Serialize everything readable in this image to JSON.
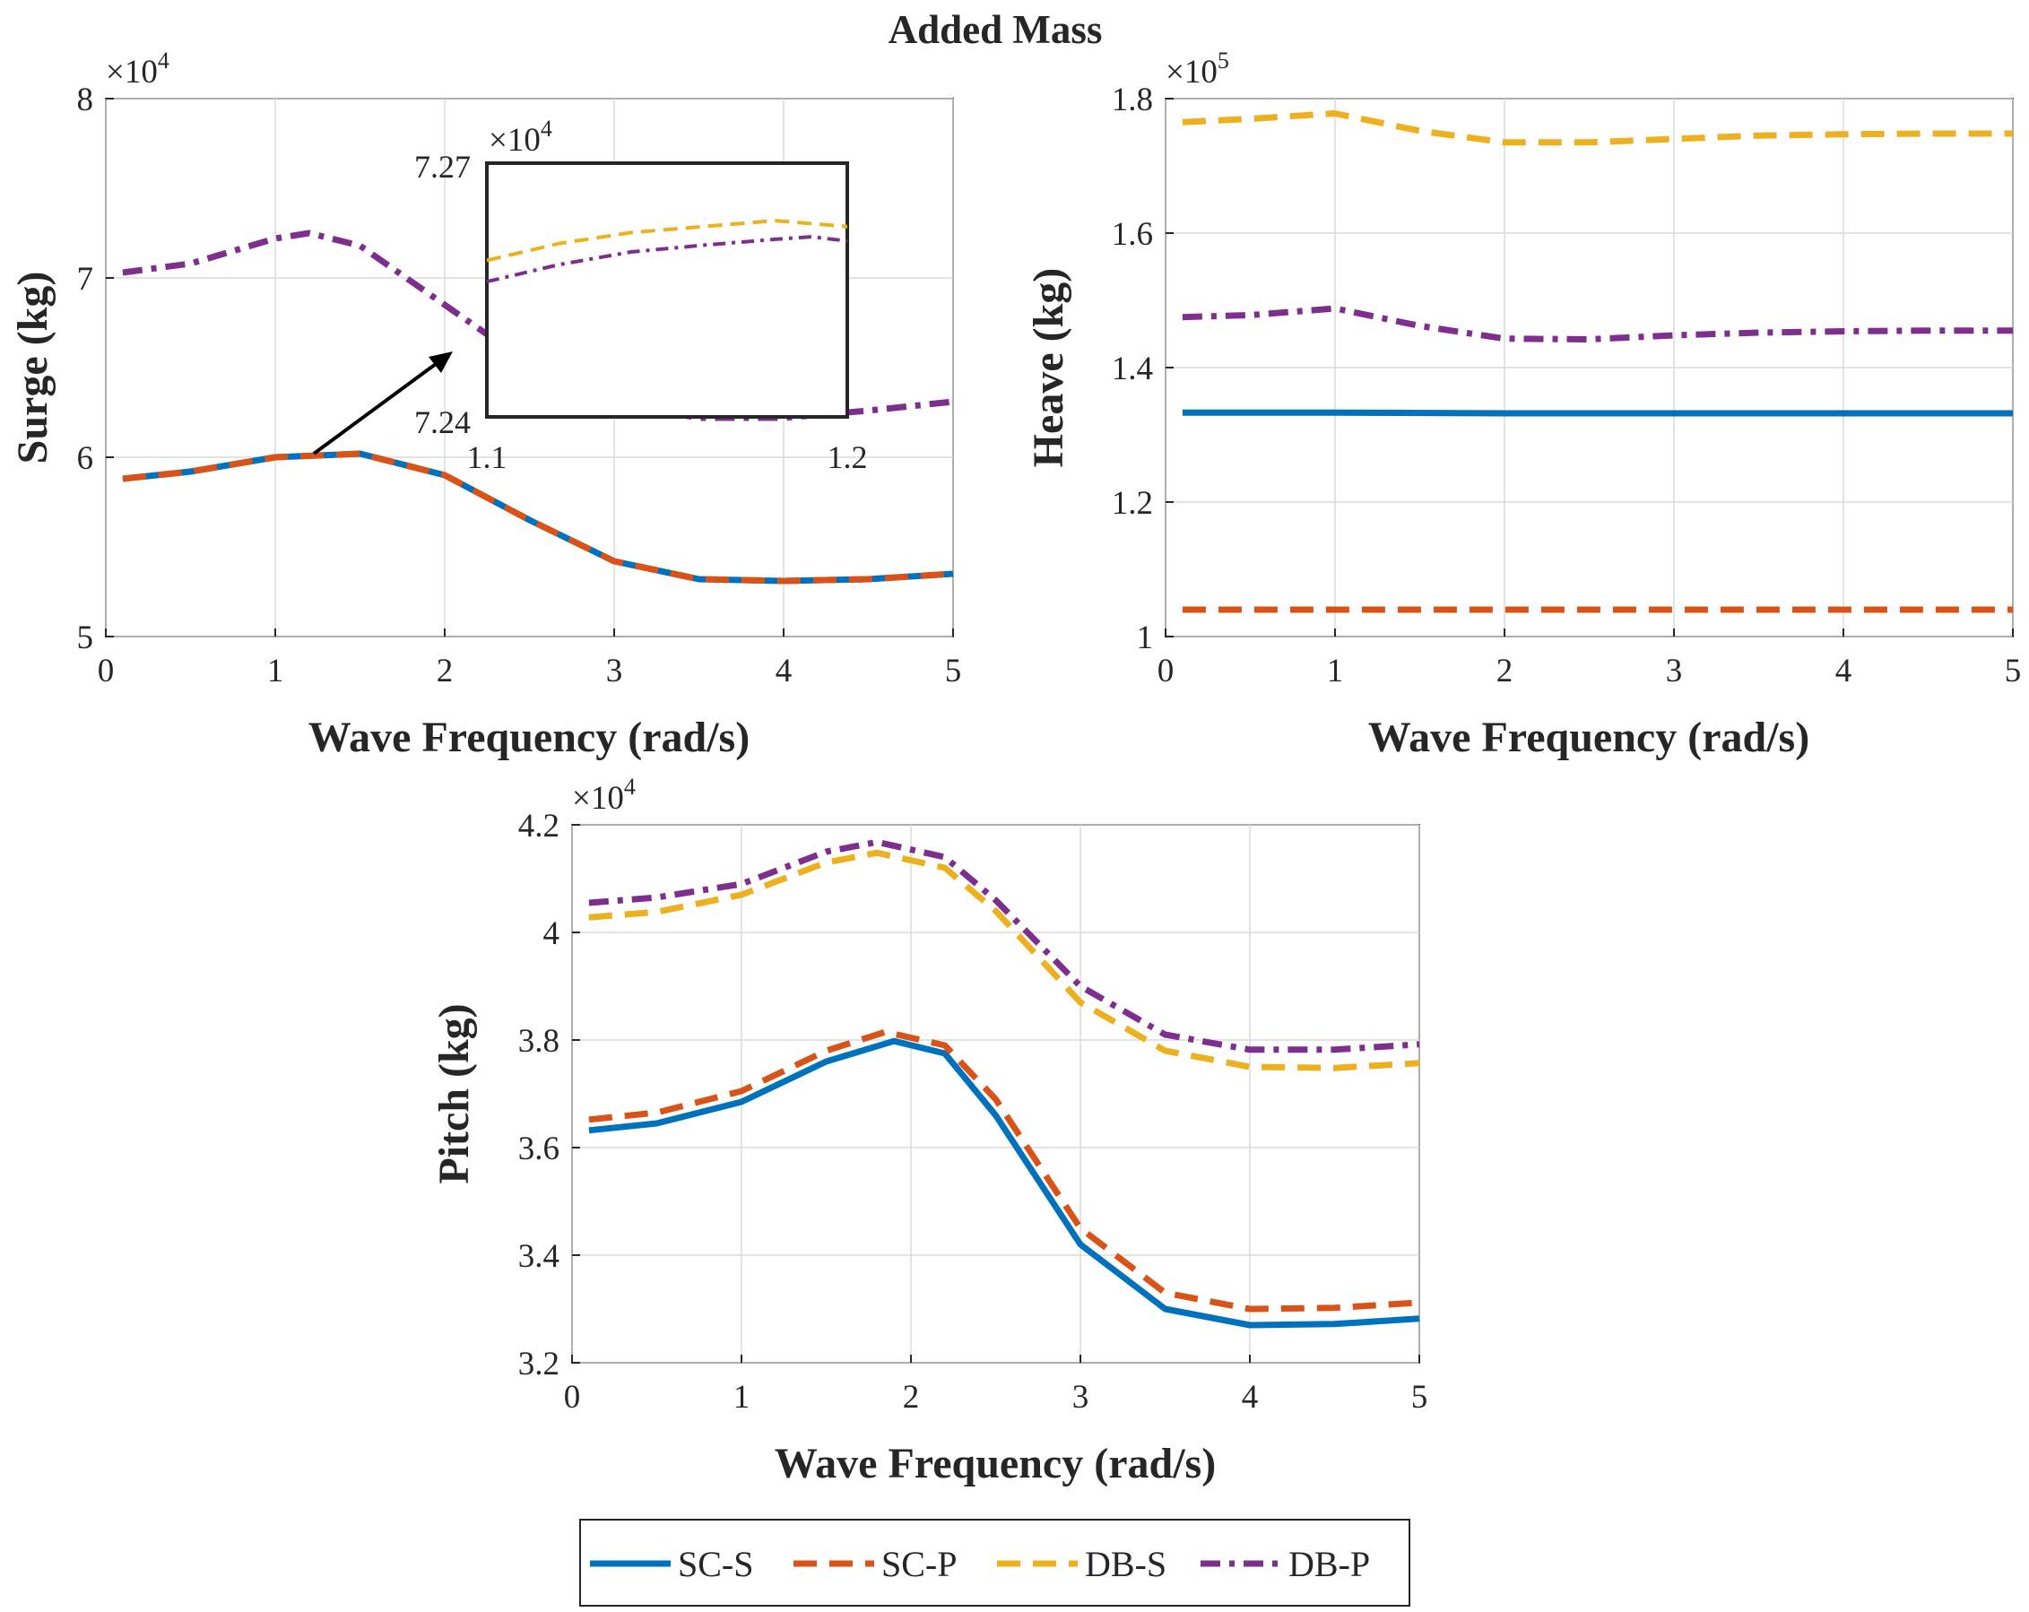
{
  "figure_title": "Added Mass",
  "chart_data": [
    {
      "id": "surge",
      "type": "line",
      "ylabel": "Surge (kg)",
      "xlabel": "Wave Frequency (rad/s)",
      "xlim": [
        0,
        5
      ],
      "ylim": [
        5,
        8
      ],
      "xticks": [
        0,
        1,
        2,
        3,
        4,
        5
      ],
      "yticks": [
        5,
        6,
        7,
        8
      ],
      "multiplier_base": "×10",
      "multiplier_exp": "4",
      "series": [
        {
          "name": "SC-S",
          "x": [
            0.1,
            0.5,
            1.0,
            1.5,
            2.0,
            2.5,
            3.0,
            3.5,
            4.0,
            4.5,
            5.0
          ],
          "values": [
            5.88,
            5.92,
            6.0,
            6.02,
            5.9,
            5.65,
            5.42,
            5.32,
            5.31,
            5.32,
            5.35
          ]
        },
        {
          "name": "SC-P",
          "x": [
            0.1,
            0.5,
            1.0,
            1.5,
            2.0,
            2.5,
            3.0,
            3.5,
            4.0,
            4.5,
            5.0
          ],
          "values": [
            5.88,
            5.92,
            6.0,
            6.02,
            5.9,
            5.65,
            5.42,
            5.32,
            5.31,
            5.32,
            5.35
          ]
        },
        {
          "name": "DB-P",
          "x": [
            0.1,
            0.5,
            1.0,
            1.2,
            1.5,
            2.0,
            2.5,
            3.0,
            3.5,
            4.0,
            4.5,
            5.0
          ],
          "values": [
            7.03,
            7.08,
            7.22,
            7.25,
            7.18,
            6.85,
            6.52,
            6.3,
            6.22,
            6.22,
            6.26,
            6.31
          ]
        }
      ],
      "inset": {
        "xlim": [
          1.1,
          1.2
        ],
        "ylim": [
          7.24,
          7.27
        ],
        "xticks": [
          1.1,
          1.2
        ],
        "yticks": [
          7.24,
          7.27
        ],
        "multiplier_base": "×10",
        "multiplier_exp": "4",
        "series": [
          {
            "name": "DB-S",
            "x": [
              1.1,
              1.12,
              1.14,
              1.16,
              1.18,
              1.2
            ],
            "values": [
              7.2585,
              7.2605,
              7.2618,
              7.2625,
              7.2632,
              7.2625
            ]
          },
          {
            "name": "DB-P",
            "x": [
              1.1,
              1.12,
              1.14,
              1.16,
              1.18,
              1.19,
              1.2
            ],
            "values": [
              7.256,
              7.258,
              7.2595,
              7.2603,
              7.261,
              7.2613,
              7.2608
            ]
          }
        ]
      }
    },
    {
      "id": "heave",
      "type": "line",
      "ylabel": "Heave (kg)",
      "xlabel": "Wave Frequency (rad/s)",
      "xlim": [
        0,
        5
      ],
      "ylim": [
        1,
        1.8
      ],
      "xticks": [
        0,
        1,
        2,
        3,
        4,
        5
      ],
      "yticks": [
        1,
        1.2,
        1.4,
        1.6,
        1.8
      ],
      "ytick_labels": [
        "1",
        "1.2",
        "1.4",
        "1.6",
        "1.8"
      ],
      "multiplier_base": "×10",
      "multiplier_exp": "5",
      "series": [
        {
          "name": "SC-S",
          "x": [
            0.1,
            1.0,
            2.0,
            3.0,
            4.0,
            5.0
          ],
          "values": [
            1.333,
            1.333,
            1.332,
            1.332,
            1.332,
            1.332
          ]
        },
        {
          "name": "SC-P",
          "x": [
            0.1,
            1.0,
            2.0,
            3.0,
            4.0,
            5.0
          ],
          "values": [
            1.04,
            1.04,
            1.04,
            1.04,
            1.04,
            1.04
          ]
        },
        {
          "name": "DB-S",
          "x": [
            0.1,
            0.5,
            1.0,
            1.5,
            2.0,
            2.5,
            3.0,
            3.5,
            4.0,
            4.5,
            5.0
          ],
          "values": [
            1.765,
            1.77,
            1.778,
            1.752,
            1.735,
            1.735,
            1.74,
            1.745,
            1.747,
            1.748,
            1.748
          ]
        },
        {
          "name": "DB-P",
          "x": [
            0.1,
            0.5,
            1.0,
            1.5,
            2.0,
            2.5,
            3.0,
            3.5,
            4.0,
            4.5,
            5.0
          ],
          "values": [
            1.475,
            1.478,
            1.488,
            1.462,
            1.443,
            1.442,
            1.448,
            1.452,
            1.454,
            1.455,
            1.455
          ]
        }
      ]
    },
    {
      "id": "pitch",
      "type": "line",
      "ylabel": "Pitch (kg)",
      "xlabel": "Wave Frequency (rad/s)",
      "xlim": [
        0,
        5
      ],
      "ylim": [
        3.2,
        4.2
      ],
      "xticks": [
        0,
        1,
        2,
        3,
        4,
        5
      ],
      "yticks": [
        3.2,
        3.4,
        3.6,
        3.8,
        4,
        4.2
      ],
      "ytick_labels": [
        "3.2",
        "3.4",
        "3.6",
        "3.8",
        "4",
        "4.2"
      ],
      "multiplier_base": "×10",
      "multiplier_exp": "4",
      "series": [
        {
          "name": "SC-S",
          "x": [
            0.1,
            0.5,
            1.0,
            1.5,
            1.9,
            2.2,
            2.5,
            3.0,
            3.5,
            4.0,
            4.5,
            5.0
          ],
          "values": [
            3.632,
            3.645,
            3.685,
            3.76,
            3.798,
            3.775,
            3.66,
            3.42,
            3.3,
            3.27,
            3.272,
            3.282
          ]
        },
        {
          "name": "SC-P",
          "x": [
            0.1,
            0.5,
            1.0,
            1.5,
            1.85,
            2.2,
            2.5,
            3.0,
            3.5,
            4.0,
            4.5,
            5.0
          ],
          "values": [
            3.652,
            3.665,
            3.705,
            3.78,
            3.815,
            3.79,
            3.69,
            3.45,
            3.33,
            3.3,
            3.302,
            3.312
          ]
        },
        {
          "name": "DB-S",
          "x": [
            0.1,
            0.5,
            1.0,
            1.5,
            1.8,
            2.2,
            2.5,
            3.0,
            3.5,
            4.0,
            4.5,
            5.0
          ],
          "values": [
            4.028,
            4.038,
            4.07,
            4.13,
            4.148,
            4.12,
            4.04,
            3.87,
            3.78,
            3.75,
            3.748,
            3.757
          ]
        },
        {
          "name": "DB-P",
          "x": [
            0.1,
            0.5,
            1.0,
            1.5,
            1.8,
            2.2,
            2.5,
            3.0,
            3.5,
            4.0,
            4.5,
            5.0
          ],
          "values": [
            4.055,
            4.065,
            4.09,
            4.15,
            4.168,
            4.14,
            4.06,
            3.9,
            3.81,
            3.782,
            3.782,
            3.792
          ]
        }
      ]
    }
  ],
  "legend": {
    "items": [
      {
        "name": "SC-S",
        "color": "#0072BD",
        "style": "solid"
      },
      {
        "name": "SC-P",
        "color": "#D95319",
        "style": "dash"
      },
      {
        "name": "DB-S",
        "color": "#EDB120",
        "style": "dash"
      },
      {
        "name": "DB-P",
        "color": "#7E2F8E",
        "style": "dashdot"
      }
    ]
  }
}
